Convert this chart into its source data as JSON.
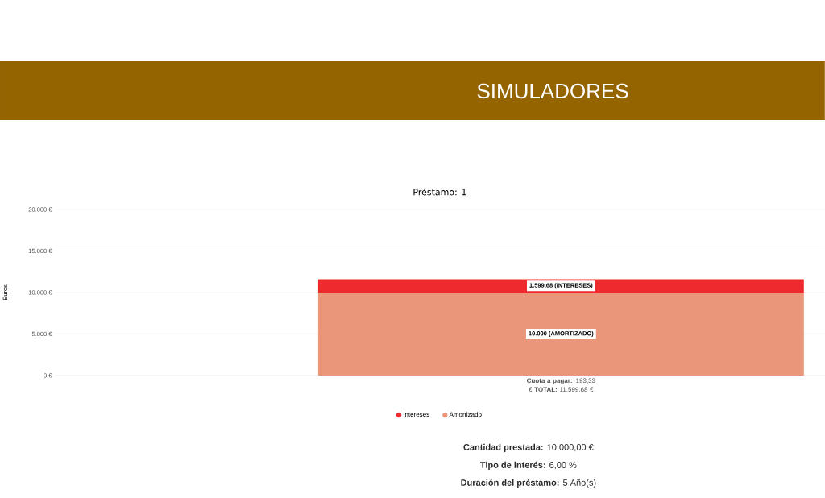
{
  "chart_data": {
    "type": "bar",
    "title": "Préstamo: 1",
    "ylabel": "Euros",
    "categories": [
      "**Cuota a pagar:** 193,33 € **TOTAL:** 11.599,68 €"
    ],
    "stacked": true,
    "series": [
      {
        "name": "Amortizado",
        "color": "#e9967a",
        "values": [
          10000
        ],
        "value_labels": [
          "10.000 (AMORTIZADO)"
        ]
      },
      {
        "name": "Intereses",
        "color": "#ee2a2e",
        "values": [
          1599.68
        ],
        "value_labels": [
          "1.599,68 (INTERESES)"
        ]
      }
    ],
    "ylim": [
      0,
      20000
    ],
    "yticks": [
      {
        "value": 0,
        "label": "0 €"
      },
      {
        "value": 5000,
        "label": "5.000 €"
      },
      {
        "value": 10000,
        "label": "10.000 €"
      },
      {
        "value": 15000,
        "label": "15.000 €"
      },
      {
        "value": 20000,
        "label": "20.000 €"
      }
    ],
    "grid": "y",
    "legend": "bottom",
    "annotations": [
      "SIMULADORES",
      "**Cantidad prestada:** 10.000,00 €",
      "**Tipo de interés:** 6,00 %",
      "**Duración del préstamo:** 5 Año(s)"
    ]
  }
}
